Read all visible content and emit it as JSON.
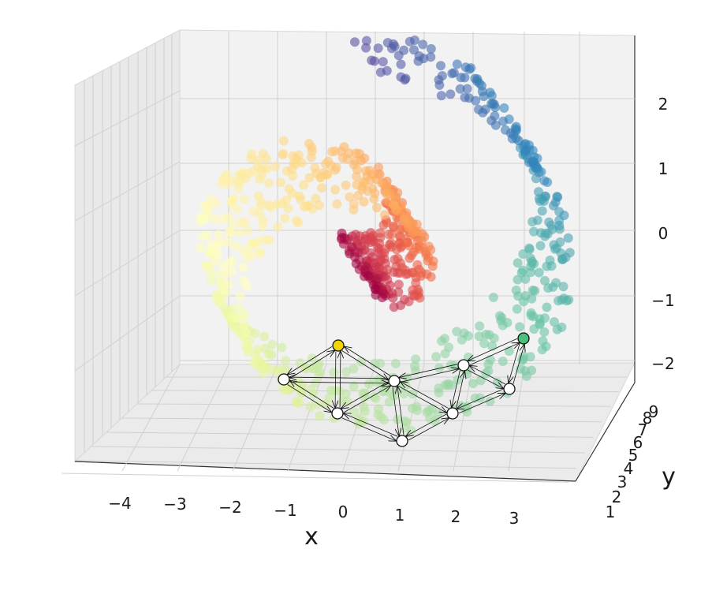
{
  "chart_data": {
    "type": "scatter",
    "projection": "3d",
    "title": "",
    "xlabel": "x",
    "ylabel": "y",
    "zlabel": "",
    "xlim": [
      -4.5,
      3.3
    ],
    "ylim": [
      1,
      9
    ],
    "zlim": [
      -2.2,
      2.6
    ],
    "x_ticks": [
      "−4",
      "−3",
      "−2",
      "−1",
      "0",
      "1",
      "2",
      "3"
    ],
    "y_ticks": [
      "1",
      "2",
      "3",
      "4",
      "5",
      "6",
      "7",
      "8",
      "9"
    ],
    "z_ticks": [
      "2",
      "1",
      "0",
      "−1",
      "−2"
    ],
    "colormap": "Spectral",
    "point_alpha": 0.6,
    "grid": true,
    "swiss_roll": {
      "t_range": [
        0.0,
        1.0
      ],
      "num_points": 900,
      "color_stops": [
        "#9e0142",
        "#d53e4f",
        "#f46d43",
        "#fdae61",
        "#fee08b",
        "#ffffbf",
        "#e6f598",
        "#abdda4",
        "#66c2a5",
        "#3288bd",
        "#5e4fa2"
      ]
    },
    "graph": {
      "nodes": [
        {
          "id": "n1",
          "role": "source",
          "color": "#f2d400"
        },
        {
          "id": "n2",
          "role": "node",
          "color": "#ffffff"
        },
        {
          "id": "n3",
          "role": "node",
          "color": "#ffffff"
        },
        {
          "id": "n4",
          "role": "node",
          "color": "#ffffff"
        },
        {
          "id": "n5",
          "role": "node",
          "color": "#ffffff"
        },
        {
          "id": "n6",
          "role": "node",
          "color": "#ffffff"
        },
        {
          "id": "n7",
          "role": "node",
          "color": "#ffffff"
        },
        {
          "id": "n8",
          "role": "node",
          "color": "#ffffff"
        },
        {
          "id": "n9",
          "role": "target",
          "color": "#4cc07a"
        }
      ],
      "edges": [
        [
          "n1",
          "n2"
        ],
        [
          "n1",
          "n3"
        ],
        [
          "n1",
          "n4"
        ],
        [
          "n2",
          "n1"
        ],
        [
          "n2",
          "n3"
        ],
        [
          "n2",
          "n4"
        ],
        [
          "n4",
          "n1"
        ],
        [
          "n4",
          "n2"
        ],
        [
          "n4",
          "n3"
        ],
        [
          "n4",
          "n5"
        ],
        [
          "n4",
          "n6"
        ],
        [
          "n4",
          "n7"
        ],
        [
          "n3",
          "n1"
        ],
        [
          "n3",
          "n2"
        ],
        [
          "n3",
          "n4"
        ],
        [
          "n3",
          "n5"
        ],
        [
          "n5",
          "n3"
        ],
        [
          "n5",
          "n4"
        ],
        [
          "n5",
          "n6"
        ],
        [
          "n6",
          "n4"
        ],
        [
          "n6",
          "n5"
        ],
        [
          "n6",
          "n7"
        ],
        [
          "n6",
          "n8"
        ],
        [
          "n7",
          "n4"
        ],
        [
          "n7",
          "n6"
        ],
        [
          "n7",
          "n8"
        ],
        [
          "n7",
          "n9"
        ],
        [
          "n8",
          "n6"
        ],
        [
          "n8",
          "n7"
        ],
        [
          "n8",
          "n9"
        ],
        [
          "n9",
          "n7"
        ],
        [
          "n9",
          "n8"
        ]
      ]
    }
  }
}
